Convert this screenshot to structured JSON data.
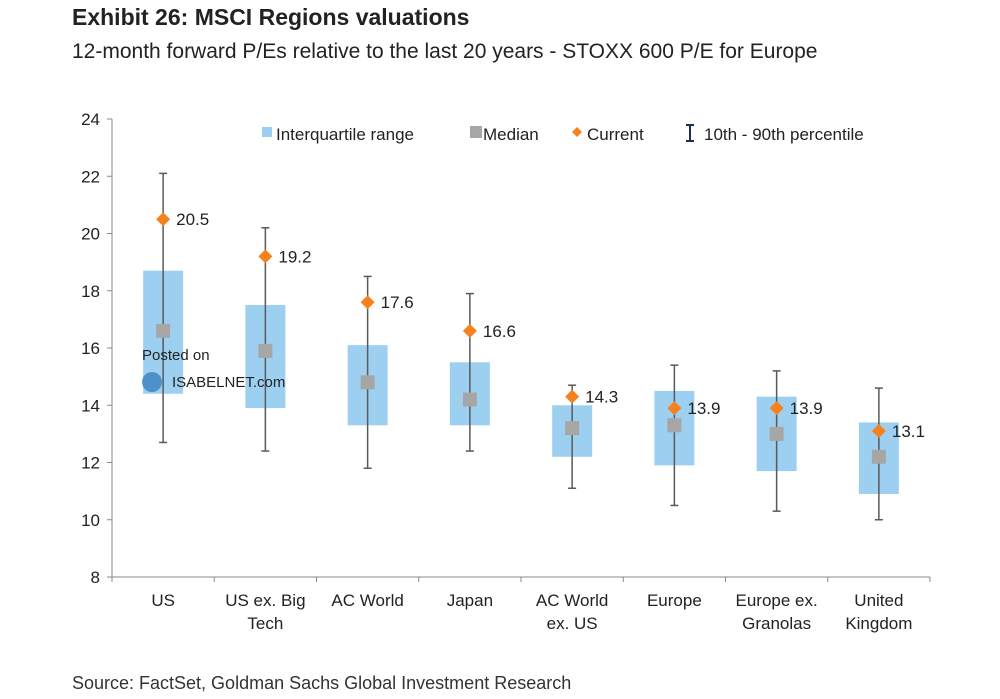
{
  "chart_data": {
    "type": "box",
    "title": "Exhibit 26: MSCI Regions valuations",
    "subtitle": "12-month forward P/Es relative to the last 20 years - STOXX 600 P/E for Europe",
    "source": "Source: FactSet, Goldman Sachs Global Investment Research",
    "ylim": [
      8,
      24
    ],
    "yticks": [
      8,
      10,
      12,
      14,
      16,
      18,
      20,
      22,
      24
    ],
    "grid": false,
    "legend_position": "top",
    "legend": [
      "Interquartile range",
      "Median",
      "Current",
      "10th - 90th percentile"
    ],
    "colors": {
      "iqr": "#9dd0f0",
      "median": "#a6a6a6",
      "current": "#f5821f",
      "whisker": "#595959"
    },
    "categories": [
      [
        "US"
      ],
      [
        "US ex. Big",
        "Tech"
      ],
      [
        "AC World"
      ],
      [
        "Japan"
      ],
      [
        "AC World",
        "ex. US"
      ],
      [
        "Europe"
      ],
      [
        "Europe ex.",
        "Granolas"
      ],
      [
        "United",
        "Kingdom"
      ]
    ],
    "p10": [
      12.7,
      12.4,
      11.8,
      12.4,
      11.1,
      10.5,
      10.3,
      10.0
    ],
    "q1": [
      14.4,
      13.9,
      13.3,
      13.3,
      12.2,
      11.9,
      11.7,
      10.9
    ],
    "median": [
      16.6,
      15.9,
      14.8,
      14.2,
      13.2,
      13.3,
      13.0,
      12.2
    ],
    "q3": [
      18.7,
      17.5,
      16.1,
      15.5,
      14.0,
      14.5,
      14.3,
      13.4
    ],
    "p90": [
      22.1,
      20.2,
      18.5,
      17.9,
      14.7,
      15.4,
      15.2,
      14.6
    ],
    "current": [
      20.5,
      19.2,
      17.6,
      16.6,
      14.3,
      13.9,
      13.9,
      13.1
    ],
    "current_labels": [
      "20.5",
      "19.2",
      "17.6",
      "16.6",
      "14.3",
      "13.9",
      "13.9",
      "13.1"
    ]
  },
  "watermark": {
    "line1": "Posted on",
    "line2": "ISABELNET.com"
  }
}
